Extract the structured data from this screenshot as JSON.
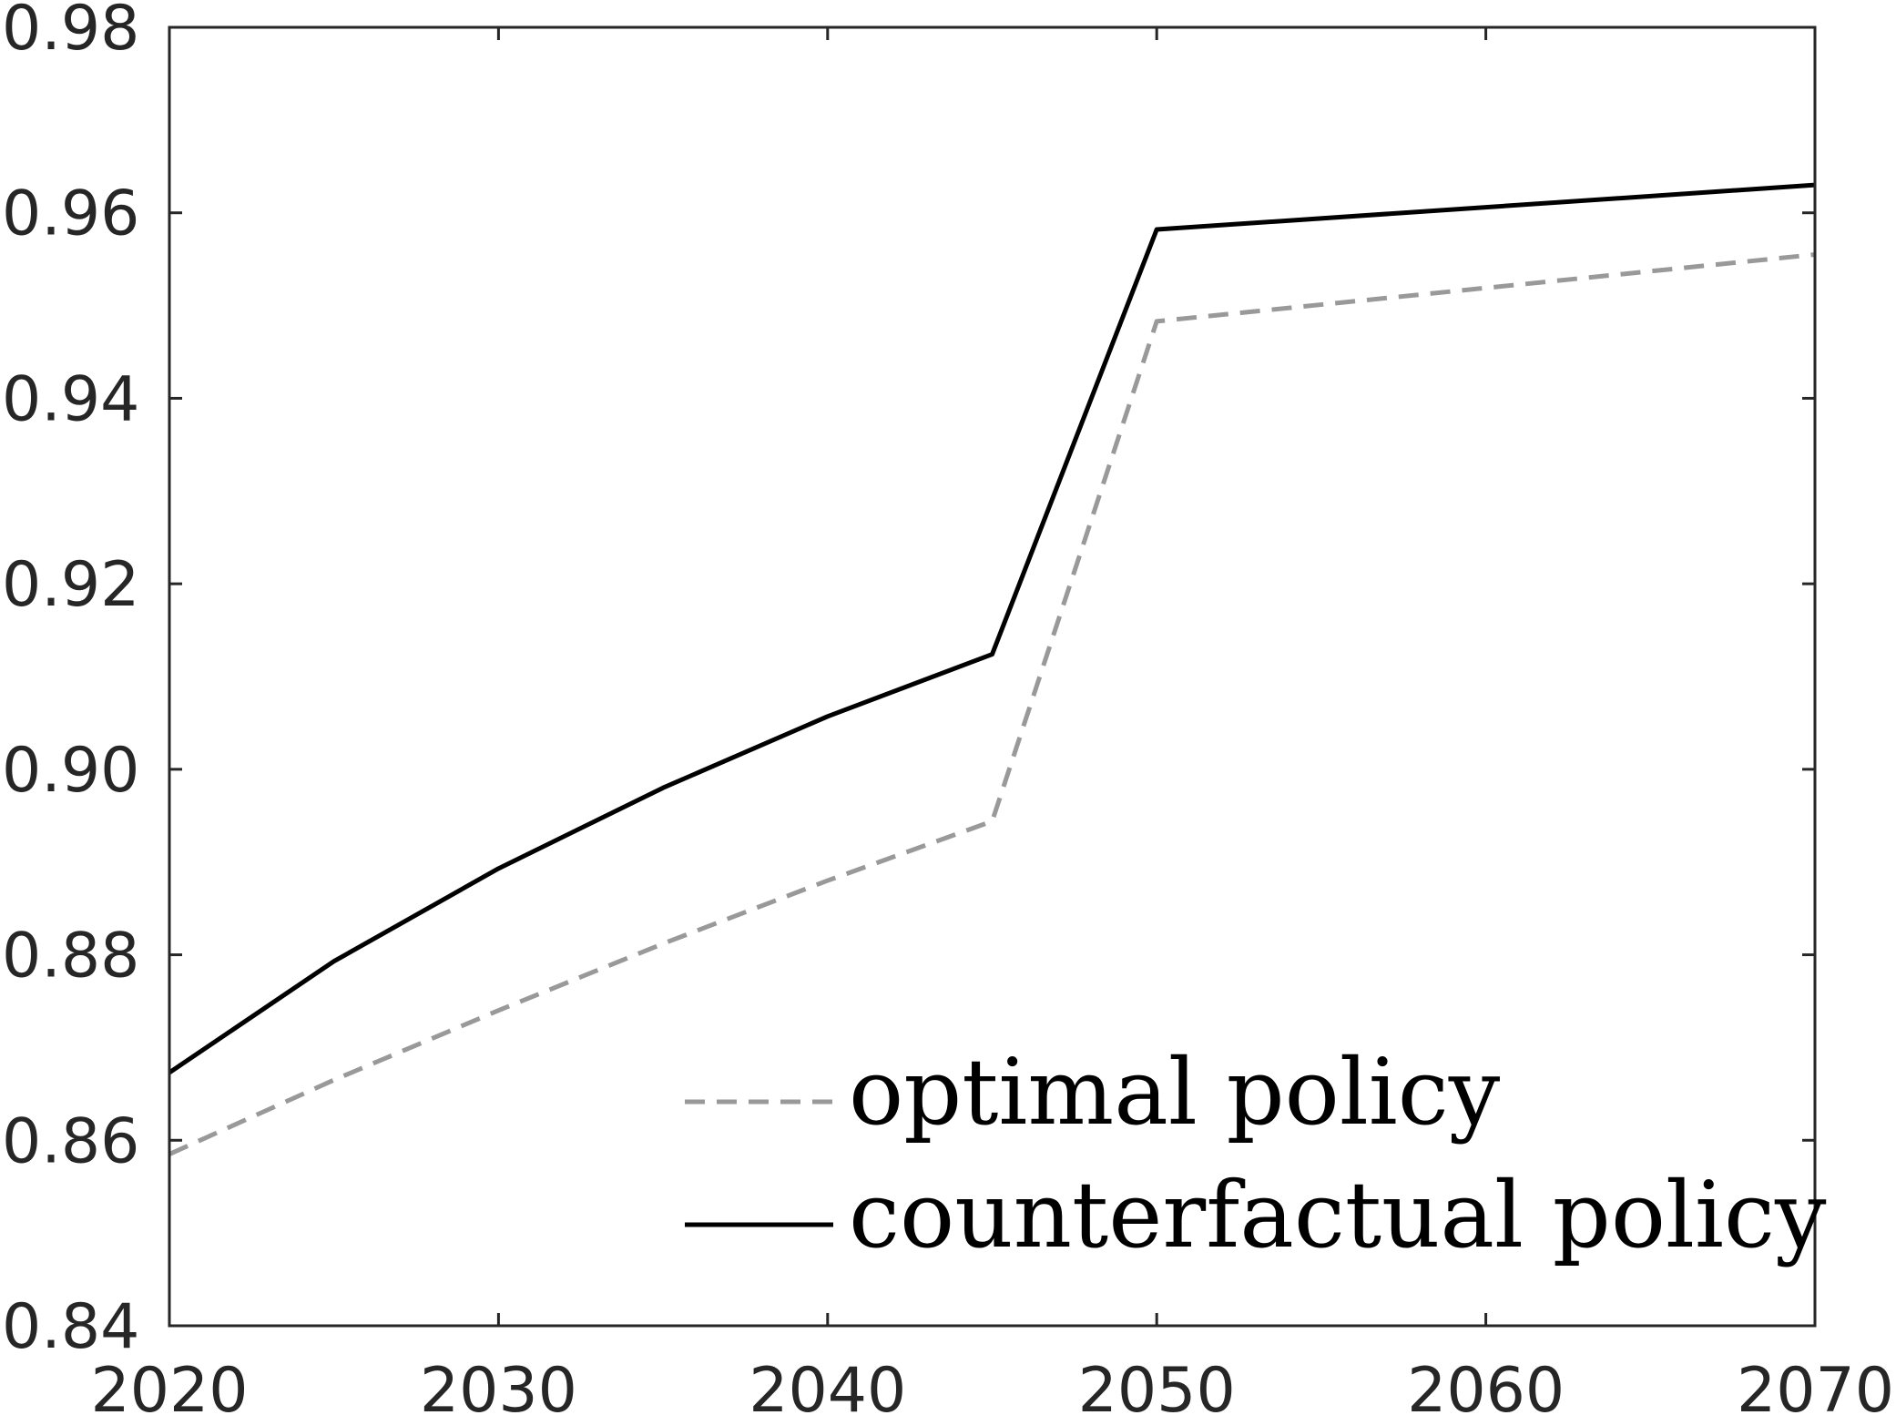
{
  "chart_data": {
    "type": "line",
    "title": "",
    "xlabel": "",
    "ylabel": "",
    "xlim": [
      2020,
      2070
    ],
    "ylim": [
      0.84,
      0.98
    ],
    "x_ticks": [
      "2020",
      "2030",
      "2040",
      "2050",
      "2060",
      "2070"
    ],
    "y_ticks": [
      "0.84",
      "0.86",
      "0.88",
      "0.90",
      "0.92",
      "0.94",
      "0.96",
      "0.98"
    ],
    "grid": false,
    "legend_position": "bottom-right",
    "x": [
      2020,
      2025,
      2030,
      2035,
      2040,
      2045,
      2050,
      2070
    ],
    "series": [
      {
        "name": "optimal policy",
        "color": "#999999",
        "style": "dashed",
        "values": [
          0.8585,
          0.8665,
          0.874,
          0.8812,
          0.888,
          0.8944,
          0.9483,
          0.9555
        ]
      },
      {
        "name": "counterfactual policy",
        "color": "#000000",
        "style": "solid",
        "values": [
          0.8673,
          0.8793,
          0.8893,
          0.898,
          0.9057,
          0.9124,
          0.9582,
          0.963
        ]
      }
    ]
  }
}
